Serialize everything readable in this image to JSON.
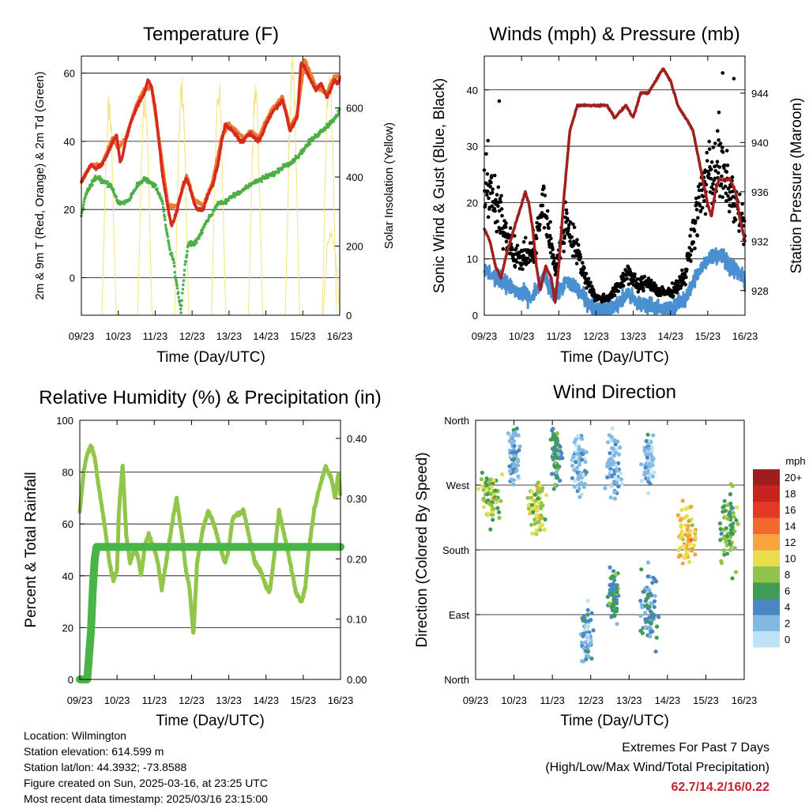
{
  "info": {
    "location": "Location: Wilmington",
    "elevation": "Station elevation: 614.599 m",
    "latlon": "Station lat/lon: 44.3932; -73.8588",
    "created": "Figure created on Sun, 2025-03-16, at 23:25 UTC",
    "timestamp": "Most recent data timestamp: 2025/03/16 23:15:00"
  },
  "extremes": {
    "title": "Extremes For Past 7 Days",
    "subtitle": "(High/Low/Max Wind/Total Precipitation)",
    "values": "62.7/14.2/16/0.22"
  },
  "colors": {
    "temp2m": "#d42a1f",
    "temp9m": "#f07a2c",
    "dewpoint": "#4daf45",
    "solar": "#f6e27a",
    "gust": "#000000",
    "wind": "#4a8fd0",
    "pressure": "#a0201f",
    "rh": "#92c64b",
    "precip": "#49b447"
  },
  "chart_data": [
    {
      "id": "temp",
      "type": "line",
      "title": "Temperature (F)",
      "xlabel": "Time (Day/UTC)",
      "ylabel": "2m & 9m T (Red, Orange) & 2m Td (Green)",
      "ylabel_right": "Solar Insolation (Yellow)",
      "x_ticks": [
        "09/23",
        "10/23",
        "11/23",
        "12/23",
        "13/23",
        "14/23",
        "15/23",
        "16/23"
      ],
      "xlim": [
        0,
        7
      ],
      "ylim": [
        -11,
        65
      ],
      "y_ticks": [
        0,
        20,
        40,
        60
      ],
      "ylim_right": [
        0,
        750
      ],
      "y_ticks_right": [
        0,
        200,
        400,
        600
      ],
      "series": [
        {
          "name": "2m T",
          "color_key": "temp2m",
          "x": [
            0,
            0.1,
            0.25,
            0.4,
            0.55,
            0.7,
            0.85,
            0.95,
            1.0,
            1.05,
            1.1,
            1.2,
            1.35,
            1.5,
            1.6,
            1.7,
            1.8,
            1.9,
            2.0,
            2.1,
            2.2,
            2.35,
            2.45,
            2.6,
            2.75,
            2.85,
            2.95,
            3.05,
            3.15,
            3.3,
            3.45,
            3.55,
            3.7,
            3.8,
            3.9,
            4.0,
            4.1,
            4.2,
            4.3,
            4.4,
            4.5,
            4.6,
            4.7,
            4.8,
            4.9,
            5.0,
            5.1,
            5.2,
            5.3,
            5.45,
            5.55,
            5.65,
            5.75,
            5.85,
            5.95,
            6.05,
            6.2,
            6.35,
            6.5,
            6.65,
            6.75,
            6.85,
            6.95,
            7.0
          ],
          "y": [
            28,
            30,
            33,
            32,
            33,
            36,
            40,
            42,
            38,
            34,
            35,
            40,
            46,
            50,
            52,
            54,
            58,
            56,
            50,
            40,
            30,
            20,
            15,
            20,
            27,
            29,
            26,
            22,
            20,
            20,
            25,
            27,
            33,
            40,
            45,
            44,
            43,
            42,
            40,
            40,
            42,
            42,
            41,
            40,
            42,
            45,
            47,
            49,
            50,
            52,
            48,
            43,
            45,
            47,
            63,
            62,
            58,
            55,
            57,
            53,
            55,
            58,
            57,
            58
          ]
        },
        {
          "name": "9m T",
          "color_key": "temp9m",
          "x": [
            0,
            0.25,
            0.55,
            0.85,
            1.0,
            1.2,
            1.5,
            1.7,
            1.9,
            2.1,
            2.35,
            2.6,
            2.85,
            3.05,
            3.3,
            3.55,
            3.8,
            4.0,
            4.2,
            4.4,
            4.6,
            4.8,
            5.0,
            5.2,
            5.45,
            5.65,
            5.85,
            6.05,
            6.35,
            6.65,
            6.85,
            7.0
          ],
          "y": [
            28,
            33,
            33,
            41,
            38,
            41,
            51,
            55,
            56,
            41,
            21,
            21,
            30,
            23,
            21,
            28,
            41,
            45,
            43,
            41,
            43,
            41,
            46,
            50,
            53,
            44,
            48,
            64,
            56,
            54,
            59,
            59
          ]
        },
        {
          "name": "2m Td",
          "color_key": "dewpoint",
          "x": [
            0,
            0.1,
            0.2,
            0.35,
            0.5,
            0.65,
            0.8,
            1.0,
            1.15,
            1.3,
            1.5,
            1.7,
            1.85,
            2.0,
            2.1,
            2.2,
            2.3,
            2.4,
            2.5,
            2.55,
            2.6,
            2.7,
            2.8,
            2.9,
            3.05,
            3.2,
            3.35,
            3.5,
            3.7,
            3.9,
            4.1,
            4.3,
            4.5,
            4.7,
            4.9,
            5.1,
            5.3,
            5.5,
            5.7,
            5.9,
            6.05,
            6.2,
            6.4,
            6.6,
            6.8,
            6.95,
            7.0
          ],
          "y": [
            18,
            24,
            26,
            29,
            29,
            28,
            27,
            22,
            22,
            23,
            27,
            29,
            28,
            27,
            25,
            22,
            14,
            8,
            5,
            0,
            -3,
            -10,
            3,
            10,
            10,
            12,
            16,
            18,
            22,
            22,
            24,
            25,
            27,
            28,
            29,
            30,
            31,
            33,
            34,
            36,
            38,
            40,
            42,
            44,
            46,
            48,
            50
          ]
        }
      ],
      "solar": {
        "name": "Solar Insolation",
        "color_key": "solar",
        "days": [
          0.75,
          1.72,
          2.72,
          3.72,
          4.72,
          5.72,
          6.72
        ],
        "peaks": [
          650,
          680,
          700,
          700,
          690,
          750,
          750
        ],
        "partial": {
          "start": 6.55,
          "end": 7.0,
          "values": [
            0,
            200,
            240,
            180,
            0
          ]
        }
      }
    },
    {
      "id": "wind",
      "type": "scatter",
      "title": "Winds (mph) & Pressure (mb)",
      "xlabel": "Time (Day/UTC)",
      "ylabel": "Sonic Wind & Gust (Blue, Black)",
      "ylabel_right": "Station Pressure (Maroon)",
      "x_ticks": [
        "09/23",
        "10/23",
        "11/23",
        "12/23",
        "13/23",
        "14/23",
        "15/23",
        "16/23"
      ],
      "xlim": [
        0,
        7
      ],
      "ylim": [
        0,
        46
      ],
      "y_ticks": [
        0,
        10,
        20,
        30,
        40
      ],
      "ylim_right": [
        926,
        947
      ],
      "y_ticks_right": [
        928,
        932,
        936,
        940,
        944
      ],
      "gust_profile": {
        "x": [
          0,
          0.5,
          0.9,
          1.3,
          1.6,
          1.9,
          2.2,
          2.45,
          2.7,
          3.0,
          3.3,
          3.6,
          3.85,
          4.1,
          4.4,
          4.7,
          5.0,
          5.4,
          5.7,
          6.0,
          6.3,
          6.6,
          6.9,
          7.0
        ],
        "y": [
          24,
          16,
          10,
          11,
          20,
          8,
          17,
          12,
          7,
          3,
          3,
          5,
          8,
          5,
          6,
          4,
          4,
          7,
          18,
          25,
          26,
          22,
          17,
          14
        ]
      },
      "gust_outliers": [
        [
          0.4,
          38
        ],
        [
          6.4,
          43
        ],
        [
          6.7,
          42
        ],
        [
          6.3,
          36
        ],
        [
          0.1,
          31
        ]
      ],
      "wind_profile": {
        "x": [
          0,
          0.5,
          0.9,
          1.3,
          1.6,
          1.9,
          2.2,
          2.45,
          2.7,
          3.0,
          3.3,
          3.6,
          3.85,
          4.1,
          4.4,
          4.7,
          5.0,
          5.4,
          5.7,
          6.0,
          6.3,
          6.6,
          6.9,
          7.0
        ],
        "y": [
          8,
          6,
          4,
          3,
          7,
          3,
          6,
          5,
          3,
          1,
          1,
          2,
          4,
          2,
          2,
          1,
          1,
          3,
          7,
          10,
          11,
          9,
          7,
          6
        ]
      },
      "pressure": {
        "name": "Station Pressure",
        "color_key": "pressure",
        "x": [
          0,
          0.15,
          0.3,
          0.45,
          0.6,
          0.8,
          1.0,
          1.1,
          1.2,
          1.3,
          1.4,
          1.5,
          1.65,
          1.8,
          1.9,
          2.0,
          2.15,
          2.3,
          2.5,
          2.7,
          3.0,
          3.3,
          3.5,
          3.8,
          4.0,
          4.2,
          4.4,
          4.6,
          4.8,
          5.0,
          5.2,
          5.4,
          5.6,
          5.8,
          6.0,
          6.1,
          6.2,
          6.3,
          6.45,
          6.6,
          6.75,
          6.85,
          7.0
        ],
        "y": [
          933,
          932,
          930,
          929,
          931,
          933,
          935,
          936,
          935,
          933,
          930,
          928,
          930,
          929,
          927,
          930,
          936,
          941,
          943,
          943,
          943,
          943,
          942,
          943,
          942,
          944,
          944,
          945,
          946,
          945,
          943,
          942,
          941,
          938,
          935,
          934,
          936,
          937,
          937,
          937,
          936,
          934,
          932
        ]
      }
    },
    {
      "id": "rh",
      "type": "line",
      "title": "Relative Humidity (%) & Precipitation (in)",
      "xlabel": "Time (Day/UTC)",
      "ylabel": "Percent & Total Rainfall",
      "x_ticks": [
        "09/23",
        "10/23",
        "11/23",
        "12/23",
        "13/23",
        "14/23",
        "15/23",
        "16/23"
      ],
      "xlim": [
        0,
        7
      ],
      "ylim": [
        0,
        100
      ],
      "y_ticks": [
        0,
        20,
        40,
        60,
        80,
        100
      ],
      "ylim_right": [
        0,
        0.43
      ],
      "y_ticks_right": [
        "0.00",
        "0.10",
        "0.20",
        "0.30",
        "0.40"
      ],
      "series": [
        {
          "name": "RH",
          "color_key": "rh",
          "x": [
            0,
            0.05,
            0.1,
            0.2,
            0.3,
            0.4,
            0.5,
            0.6,
            0.7,
            0.8,
            0.9,
            1.0,
            1.05,
            1.15,
            1.25,
            1.35,
            1.45,
            1.55,
            1.65,
            1.75,
            1.85,
            2.0,
            2.1,
            2.2,
            2.35,
            2.5,
            2.6,
            2.75,
            2.85,
            2.95,
            3.05,
            3.15,
            3.3,
            3.45,
            3.6,
            3.75,
            3.9,
            4.0,
            4.1,
            4.25,
            4.4,
            4.55,
            4.7,
            4.85,
            5.0,
            5.1,
            5.2,
            5.35,
            5.5,
            5.65,
            5.8,
            5.95,
            6.05,
            6.15,
            6.3,
            6.45,
            6.6,
            6.75,
            6.85,
            6.95,
            7.0
          ],
          "y": [
            65,
            72,
            80,
            87,
            90,
            86,
            75,
            66,
            56,
            45,
            38,
            42,
            65,
            83,
            55,
            45,
            50,
            48,
            40,
            52,
            56,
            50,
            45,
            35,
            48,
            62,
            70,
            55,
            42,
            35,
            17,
            45,
            58,
            65,
            60,
            52,
            45,
            50,
            62,
            64,
            65,
            55,
            45,
            42,
            36,
            34,
            45,
            65,
            55,
            45,
            34,
            30,
            35,
            50,
            66,
            75,
            82,
            78,
            70,
            80,
            70
          ]
        },
        {
          "name": "Precip",
          "color_key": "precip",
          "x": [
            0,
            0.2,
            0.3,
            0.35,
            0.4,
            0.45,
            7.0
          ],
          "y": [
            0,
            0,
            0.08,
            0.15,
            0.2,
            0.22,
            0.22
          ]
        }
      ]
    },
    {
      "id": "dir",
      "type": "scatter",
      "title": "Wind Direction",
      "xlabel": "Time (Day/UTC)",
      "ylabel": "Direction (Colored By Speed)",
      "x_ticks": [
        "09/23",
        "10/23",
        "11/23",
        "12/23",
        "13/23",
        "14/23",
        "15/23",
        "16/23"
      ],
      "xlim": [
        0,
        7
      ],
      "ylim": [
        0,
        360
      ],
      "y_ticks": [
        "North",
        "East",
        "South",
        "West",
        "North"
      ],
      "clusters": [
        {
          "x": 0.4,
          "dir": 250,
          "spread_x": 0.4,
          "spread_d": 40,
          "speed": 8
        },
        {
          "x": 1.0,
          "dir": 300,
          "spread_x": 0.2,
          "spread_d": 40,
          "speed": 3
        },
        {
          "x": 1.6,
          "dir": 240,
          "spread_x": 0.3,
          "spread_d": 40,
          "speed": 9
        },
        {
          "x": 2.1,
          "dir": 310,
          "spread_x": 0.2,
          "spread_d": 40,
          "speed": 5
        },
        {
          "x": 2.7,
          "dir": 300,
          "spread_x": 0.3,
          "spread_d": 50,
          "speed": 2
        },
        {
          "x": 2.9,
          "dir": 60,
          "spread_x": 0.2,
          "spread_d": 40,
          "speed": 3
        },
        {
          "x": 3.6,
          "dir": 300,
          "spread_x": 0.3,
          "spread_d": 50,
          "speed": 2
        },
        {
          "x": 3.6,
          "dir": 120,
          "spread_x": 0.2,
          "spread_d": 40,
          "speed": 5
        },
        {
          "x": 4.5,
          "dir": 100,
          "spread_x": 0.3,
          "spread_d": 50,
          "speed": 4
        },
        {
          "x": 4.5,
          "dir": 300,
          "spread_x": 0.2,
          "spread_d": 40,
          "speed": 2
        },
        {
          "x": 5.5,
          "dir": 200,
          "spread_x": 0.35,
          "spread_d": 40,
          "speed": 11
        },
        {
          "x": 6.6,
          "dir": 210,
          "spread_x": 0.35,
          "spread_d": 60,
          "speed": 7
        }
      ],
      "colorbar": {
        "title": "mph",
        "labels": [
          "20+",
          "18",
          "16",
          "14",
          "12",
          "10",
          "8",
          "6",
          "4",
          "2",
          "0"
        ],
        "colors": [
          "#a01d1f",
          "#c8241f",
          "#e23a24",
          "#f2682d",
          "#f8a33e",
          "#e8de4c",
          "#8fc34a",
          "#3f9d53",
          "#4a86c4",
          "#82b9e2",
          "#bfe3f6"
        ]
      }
    }
  ]
}
